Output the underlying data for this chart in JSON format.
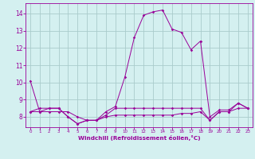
{
  "xlabel": "Windchill (Refroidissement éolien,°C)",
  "x": [
    0,
    1,
    2,
    3,
    4,
    5,
    6,
    7,
    8,
    9,
    10,
    11,
    12,
    13,
    14,
    15,
    16,
    17,
    18,
    19,
    20,
    21,
    22,
    23
  ],
  "line1": [
    10.1,
    8.3,
    8.5,
    8.5,
    8.0,
    7.6,
    7.8,
    7.8,
    8.3,
    8.6,
    10.3,
    12.6,
    13.9,
    14.1,
    14.2,
    13.1,
    12.9,
    11.9,
    12.4,
    8.0,
    8.4,
    8.4,
    8.8,
    8.5
  ],
  "line2": [
    8.3,
    8.3,
    8.3,
    8.3,
    8.3,
    8.0,
    7.8,
    7.8,
    8.0,
    8.1,
    8.1,
    8.1,
    8.1,
    8.1,
    8.1,
    8.1,
    8.2,
    8.2,
    8.3,
    7.8,
    8.3,
    8.3,
    8.5,
    8.5
  ],
  "line3": [
    8.3,
    8.5,
    8.5,
    8.5,
    8.0,
    7.6,
    7.8,
    7.8,
    8.1,
    8.5,
    8.5,
    8.5,
    8.5,
    8.5,
    8.5,
    8.5,
    8.5,
    8.5,
    8.5,
    7.8,
    8.3,
    8.3,
    8.8,
    8.5
  ],
  "line_color": "#990099",
  "bg_color": "#d4f0f0",
  "grid_color": "#aacccc",
  "ylim": [
    7.4,
    14.6
  ],
  "yticks": [
    8,
    9,
    10,
    11,
    12,
    13,
    14
  ],
  "xlim": [
    -0.5,
    23.5
  ],
  "xticks": [
    0,
    1,
    2,
    3,
    4,
    5,
    6,
    7,
    8,
    9,
    10,
    11,
    12,
    13,
    14,
    15,
    16,
    17,
    18,
    19,
    20,
    21,
    22,
    23
  ]
}
